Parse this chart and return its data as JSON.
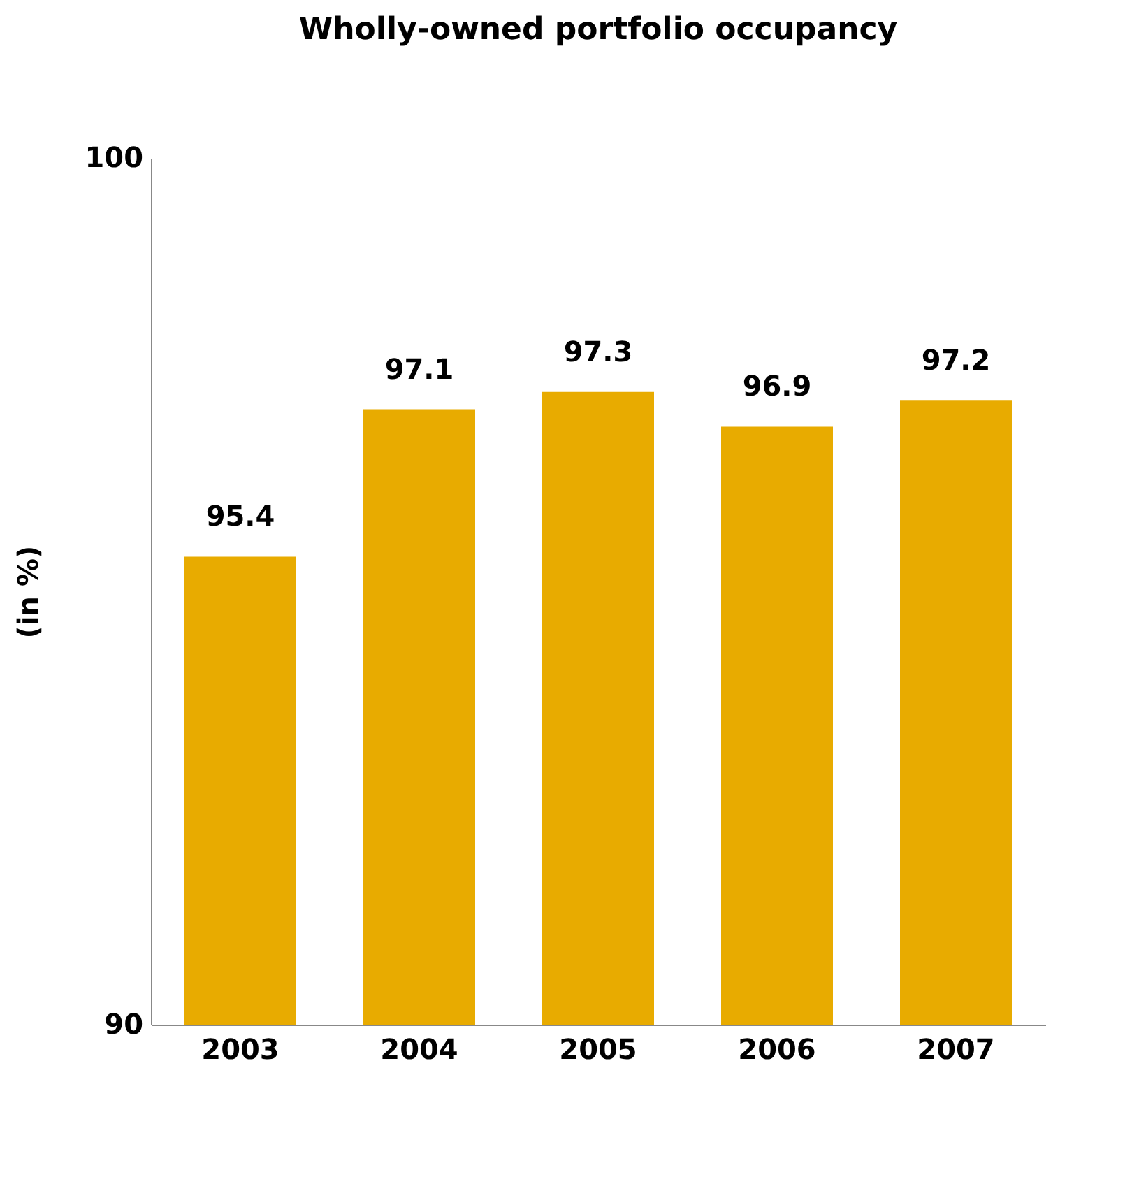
{
  "chart_data": {
    "type": "bar",
    "title": "Wholly-owned portfolio occupancy",
    "ylabel": "(in %)",
    "categories": [
      "2003",
      "2004",
      "2005",
      "2006",
      "2007"
    ],
    "values": [
      95.4,
      97.1,
      97.3,
      96.9,
      97.2
    ],
    "color": "#e8ab00",
    "ylim": [
      90,
      100
    ],
    "yticks": [
      90,
      100
    ],
    "data_labels": true
  }
}
